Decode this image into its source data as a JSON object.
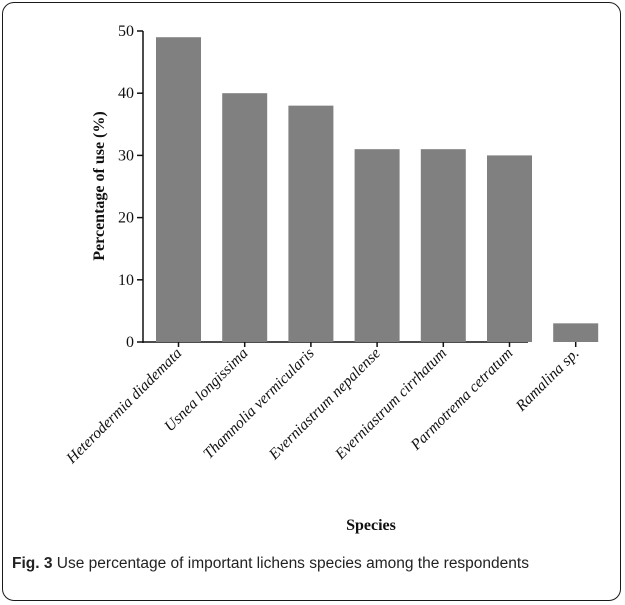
{
  "chart_data": {
    "type": "bar",
    "categories": [
      "Heterodermia diademata",
      "Usnea longissima",
      "Thamnolia vermicularis",
      "Everniastrum nepalense",
      "Everniastrum cirrhatum",
      "Parmotrema cetratum",
      "Ramalina sp."
    ],
    "values": [
      49,
      40,
      38,
      31,
      31,
      30,
      3
    ],
    "xlabel": "Species",
    "ylabel": "Percentage of use (%)",
    "ylim": [
      0,
      50
    ],
    "yticks": [
      0,
      10,
      20,
      30,
      40,
      50
    ],
    "bar_color": "#808080",
    "grid": false,
    "legend": "none"
  },
  "caption": {
    "label": "Fig. 3",
    "text": "Use percentage of important lichens species among the respondents"
  }
}
